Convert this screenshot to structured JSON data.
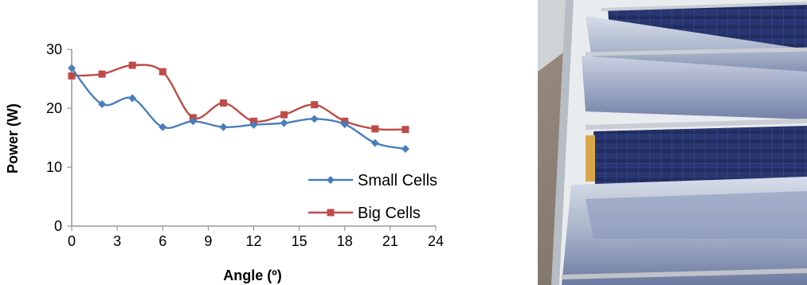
{
  "chart_data": {
    "type": "line",
    "title": "",
    "xlabel": "Angle (º)",
    "ylabel": "Power (W)",
    "xlim": [
      0,
      24
    ],
    "ylim": [
      0,
      30
    ],
    "x_ticks": [
      "0",
      "3",
      "6",
      "9",
      "12",
      "15",
      "18",
      "21",
      "24"
    ],
    "y_ticks": [
      "0",
      "10",
      "20",
      "30"
    ],
    "grid": false,
    "legend_position": "bottom-right",
    "x": [
      0,
      2,
      4,
      6,
      8,
      10,
      12,
      14,
      16,
      18,
      20,
      22
    ],
    "series": [
      {
        "name": "Small Cells",
        "color": "#4a7ebb",
        "marker": "diamond",
        "values": [
          26.8,
          20.7,
          21.7,
          16.8,
          17.8,
          16.8,
          17.2,
          17.5,
          18.2,
          17.3,
          14.1,
          13.1
        ]
      },
      {
        "name": "Big Cells",
        "color": "#be4b48",
        "marker": "square",
        "values": [
          25.5,
          25.8,
          27.3,
          26.2,
          18.4,
          20.9,
          17.8,
          18.9,
          20.6,
          17.8,
          16.5,
          16.4
        ]
      }
    ]
  }
}
